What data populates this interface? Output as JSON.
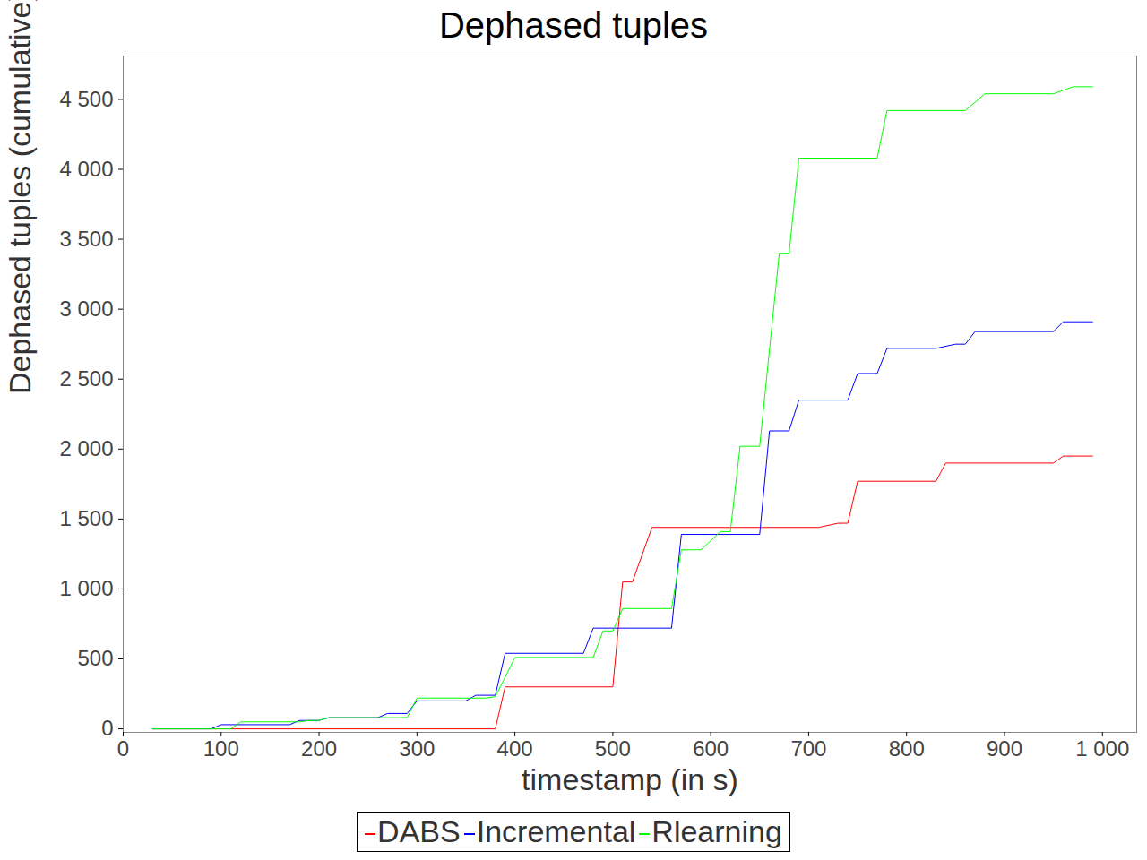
{
  "chart_data": {
    "type": "line",
    "title": "Dephased tuples",
    "x_label": "timestamp (in s)",
    "y_label": "Dephased tuples (cumulative)",
    "xlim": [
      0,
      1035
    ],
    "ylim": [
      -25,
      4810
    ],
    "xticks": [
      0,
      100,
      200,
      300,
      400,
      500,
      600,
      700,
      800,
      900,
      {
        "value": 1000,
        "label": "1 000"
      }
    ],
    "yticks": [
      0,
      500,
      {
        "value": 1000,
        "label": "1 000"
      },
      {
        "value": 1500,
        "label": "1 500"
      },
      {
        "value": 2000,
        "label": "2 000"
      },
      {
        "value": 2500,
        "label": "2 500"
      },
      {
        "value": 3000,
        "label": "3 000"
      },
      {
        "value": 3500,
        "label": "3 500"
      },
      {
        "value": 4000,
        "label": "4 000"
      },
      {
        "value": 4500,
        "label": "4 500"
      }
    ],
    "grid": false,
    "legend": "bottom",
    "series": [
      {
        "name": "DABS",
        "color": "#ff0000",
        "x": [
          30,
          380,
          390,
          500,
          510,
          520,
          540,
          710,
          730,
          740,
          750,
          830,
          840,
          950,
          960,
          990
        ],
        "values": [
          0,
          0,
          300,
          300,
          1050,
          1050,
          1440,
          1440,
          1470,
          1470,
          1770,
          1770,
          1900,
          1900,
          1950,
          1950
        ]
      },
      {
        "name": "Incremental",
        "color": "#0000ff",
        "x": [
          30,
          90,
          100,
          170,
          180,
          200,
          210,
          260,
          270,
          290,
          300,
          350,
          360,
          380,
          390,
          470,
          480,
          560,
          570,
          650,
          660,
          680,
          690,
          740,
          750,
          770,
          780,
          830,
          850,
          860,
          870,
          950,
          960,
          990
        ],
        "values": [
          0,
          0,
          30,
          30,
          60,
          60,
          80,
          80,
          110,
          110,
          200,
          200,
          240,
          240,
          540,
          540,
          720,
          720,
          1390,
          1390,
          2130,
          2130,
          2350,
          2350,
          2540,
          2540,
          2720,
          2720,
          2750,
          2750,
          2840,
          2840,
          2910,
          2910
        ]
      },
      {
        "name": "Rlearning",
        "color": "#00ff00",
        "x": [
          30,
          110,
          120,
          170,
          180,
          190,
          200,
          210,
          260,
          290,
          300,
          370,
          380,
          400,
          480,
          490,
          500,
          510,
          560,
          570,
          590,
          610,
          620,
          630,
          650,
          670,
          680,
          690,
          770,
          780,
          860,
          880,
          950,
          970,
          990
        ],
        "values": [
          0,
          0,
          50,
          50,
          50,
          60,
          60,
          80,
          80,
          80,
          220,
          220,
          230,
          510,
          510,
          700,
          700,
          860,
          860,
          1280,
          1280,
          1410,
          1410,
          2020,
          2020,
          3400,
          3400,
          4080,
          4080,
          4420,
          4420,
          4540,
          4540,
          4590,
          4590
        ]
      }
    ]
  }
}
